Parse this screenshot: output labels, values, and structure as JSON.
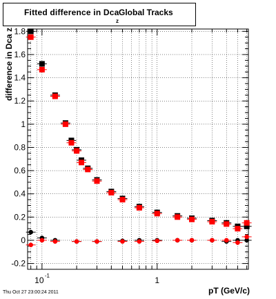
{
  "title_box": {
    "main": "Fitted difference in Dca",
    "subscript": "z",
    "tail": "Global Tracks"
  },
  "footer": {
    "timestamp": "Thu Oct 27 23:00:24 2011"
  },
  "chart_data": {
    "type": "scatter",
    "title": "Fitted difference in Dca_z Global Tracks",
    "xlabel": "pT (GeV/c)",
    "ylabel": "difference in Dca z",
    "xscale": "log",
    "xlim": [
      0.075,
      6.2
    ],
    "ylim": [
      -0.25,
      1.82
    ],
    "grid": true,
    "x_tick_labels": [
      {
        "value": 0.1,
        "label": "10",
        "sup": "-1"
      },
      {
        "value": 1,
        "label": "1",
        "sup": ""
      }
    ],
    "y_ticks": [
      -0.2,
      0,
      0.2,
      0.4,
      0.6,
      0.8,
      1,
      1.2,
      1.4,
      1.6,
      1.8
    ],
    "y_tick_labels": [
      "-0.2",
      "0",
      "0.2",
      "0.4",
      "0.6",
      "0.8",
      "1",
      "1.2",
      "1.4",
      "1.6",
      "1.8"
    ],
    "colors": {
      "black_series": "#000000",
      "red_series": "#ff0000"
    },
    "series": [
      {
        "marker": "square",
        "color": "black",
        "points": [
          [
            0.08,
            1.8
          ],
          [
            0.1,
            1.52
          ],
          [
            0.13,
            1.25
          ],
          [
            0.16,
            1.01
          ],
          [
            0.18,
            0.86
          ],
          [
            0.2,
            0.78
          ],
          [
            0.22,
            0.69
          ],
          [
            0.25,
            0.62
          ],
          [
            0.3,
            0.52
          ],
          [
            0.4,
            0.42
          ],
          [
            0.5,
            0.36
          ],
          [
            0.7,
            0.29
          ],
          [
            1.0,
            0.24
          ],
          [
            1.5,
            0.21
          ],
          [
            2.0,
            0.19
          ],
          [
            3.0,
            0.17
          ],
          [
            4.0,
            0.15
          ],
          [
            5.0,
            0.12
          ],
          [
            6.0,
            0.12
          ]
        ]
      },
      {
        "marker": "square",
        "color": "red",
        "points": [
          [
            0.08,
            1.75
          ],
          [
            0.1,
            1.47
          ],
          [
            0.13,
            1.24
          ],
          [
            0.16,
            1.0
          ],
          [
            0.18,
            0.84
          ],
          [
            0.2,
            0.77
          ],
          [
            0.22,
            0.67
          ],
          [
            0.25,
            0.61
          ],
          [
            0.3,
            0.51
          ],
          [
            0.4,
            0.41
          ],
          [
            0.5,
            0.35
          ],
          [
            0.7,
            0.28
          ],
          [
            1.0,
            0.23
          ],
          [
            1.5,
            0.2
          ],
          [
            2.0,
            0.18
          ],
          [
            3.0,
            0.16
          ],
          [
            4.0,
            0.14
          ],
          [
            5.0,
            0.1
          ],
          [
            6.0,
            0.15
          ]
        ]
      },
      {
        "marker": "circle",
        "color": "black",
        "points": [
          [
            0.08,
            0.07
          ],
          [
            0.1,
            0.02
          ],
          [
            0.13,
            0.0
          ],
          [
            0.2,
            -0.01
          ],
          [
            0.3,
            -0.01
          ],
          [
            0.5,
            -0.005
          ],
          [
            0.7,
            0.0
          ],
          [
            1.0,
            0.0
          ],
          [
            1.5,
            0.0
          ],
          [
            2.0,
            0.0
          ],
          [
            3.0,
            0.0
          ],
          [
            4.0,
            -0.01
          ],
          [
            5.0,
            0.0
          ],
          [
            6.0,
            0.0
          ]
        ]
      },
      {
        "marker": "circle",
        "color": "red",
        "points": [
          [
            0.08,
            -0.04
          ],
          [
            0.1,
            0.0
          ],
          [
            0.13,
            -0.01
          ],
          [
            0.2,
            -0.01
          ],
          [
            0.3,
            -0.01
          ],
          [
            0.5,
            -0.01
          ],
          [
            0.7,
            -0.01
          ],
          [
            1.0,
            -0.005
          ],
          [
            1.5,
            0.0
          ],
          [
            2.0,
            0.0
          ],
          [
            3.0,
            0.0
          ],
          [
            4.0,
            0.0
          ],
          [
            5.0,
            -0.02
          ],
          [
            6.0,
            0.03
          ]
        ]
      }
    ]
  }
}
